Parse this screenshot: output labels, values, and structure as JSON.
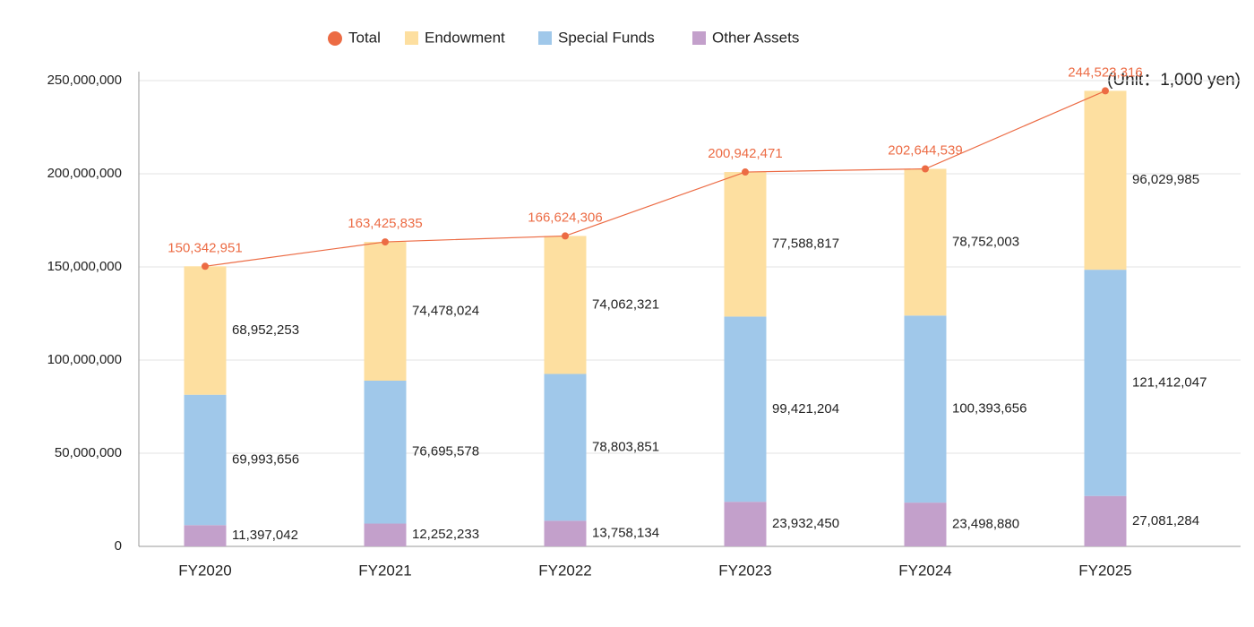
{
  "chart_data": {
    "type": "bar",
    "stacked": true,
    "categories": [
      "FY2020",
      "FY2021",
      "FY2022",
      "FY2023",
      "FY2024",
      "FY2025"
    ],
    "series": [
      {
        "name": "Total",
        "type": "line",
        "color": "#ec6b44",
        "values": [
          150342951,
          163425835,
          166624306,
          200942471,
          202644539,
          244523316
        ],
        "value_labels": [
          "150,342,951",
          "163,425,835",
          "166,624,306",
          "200,942,471",
          "202,644,539",
          "244,523,316"
        ]
      },
      {
        "name": "Endowment",
        "color": "#fddfa0",
        "values": [
          68952253,
          74478024,
          74062321,
          77588817,
          78752003,
          96029985
        ],
        "value_labels": [
          "68,952,253",
          "74,478,024",
          "74,062,321",
          "77,588,817",
          "78,752,003",
          "96,029,985"
        ]
      },
      {
        "name": "Special Funds",
        "color": "#a0c8ea",
        "values": [
          69993656,
          76695578,
          78803851,
          99421204,
          100393656,
          121412047
        ],
        "value_labels": [
          "69,993,656",
          "76,695,578",
          "78,803,851",
          "99,421,204",
          "100,393,656",
          "121,412,047"
        ]
      },
      {
        "name": "Other Assets",
        "color": "#c3a0cb",
        "values": [
          11397042,
          12252233,
          13758134,
          23932450,
          23498880,
          27081284
        ],
        "value_labels": [
          "11,397,042",
          "12,252,233",
          "13,758,134",
          "23,932,450",
          "23,498,880",
          "27,081,284"
        ]
      }
    ],
    "ylim": [
      0,
      250000000
    ],
    "yticks": [
      0,
      {
        "value": 50000000,
        "label": "50,000,000"
      },
      {
        "value": 100000000,
        "label": "100,000,000"
      },
      {
        "value": 150000000,
        "label": "150,000,000"
      },
      {
        "value": 200000000,
        "label": "200,000,000"
      },
      {
        "value": 250000000,
        "label": "250,000,000"
      }
    ],
    "grid": true,
    "legend": "top",
    "annotation": "(Unit：1,000 yen)"
  }
}
